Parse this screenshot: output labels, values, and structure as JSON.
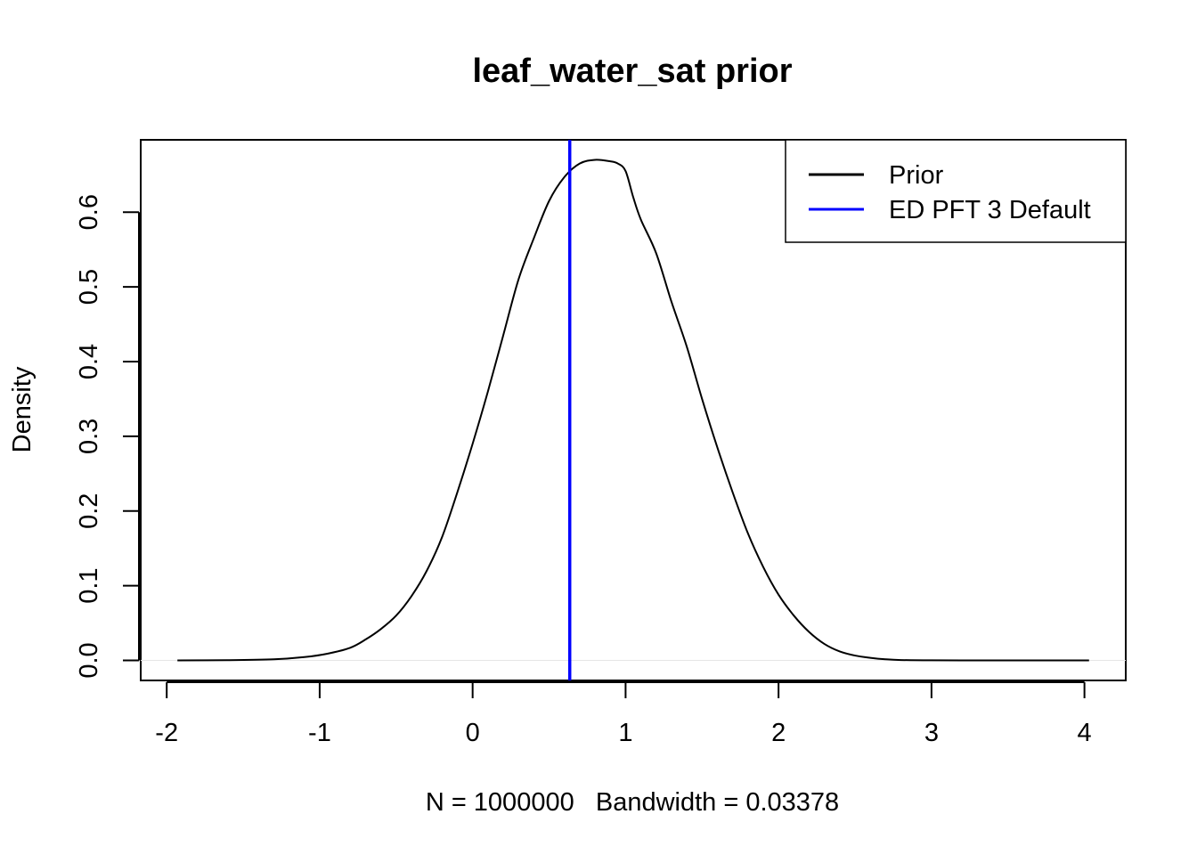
{
  "chart_data": {
    "type": "line",
    "title": "leaf_water_sat prior",
    "xlabel": "N = 1000000   Bandwidth = 0.03378",
    "ylabel": "Density",
    "xlim": [
      -2.17,
      4.27
    ],
    "ylim": [
      -0.0268,
      0.6968
    ],
    "x_ticks": [
      -2,
      -1,
      0,
      1,
      2,
      3,
      4
    ],
    "y_ticks": [
      0.0,
      0.1,
      0.2,
      0.3,
      0.4,
      0.5,
      0.6
    ],
    "x_tick_labels": [
      "-2",
      "-1",
      "0",
      "1",
      "2",
      "3",
      "4"
    ],
    "y_tick_labels": [
      "0.0",
      "0.1",
      "0.2",
      "0.3",
      "0.4",
      "0.5",
      "0.6"
    ],
    "legend_position": "top-right",
    "series": [
      {
        "name": "Prior",
        "color": "#000000",
        "x": [
          -1.93,
          -1.6,
          -1.3,
          -1.1,
          -0.95,
          -0.8,
          -0.7,
          -0.6,
          -0.5,
          -0.4,
          -0.3,
          -0.2,
          -0.1,
          0.0,
          0.1,
          0.2,
          0.3,
          0.4,
          0.5,
          0.6,
          0.7,
          0.8,
          0.9,
          0.95,
          1.0,
          1.05,
          1.1,
          1.2,
          1.3,
          1.4,
          1.5,
          1.6,
          1.7,
          1.8,
          1.9,
          2.0,
          2.1,
          2.2,
          2.3,
          2.4,
          2.5,
          2.6,
          2.7,
          2.8,
          3.0,
          3.3,
          3.6,
          4.03
        ],
        "y": [
          0.0,
          0.0003,
          0.0015,
          0.0045,
          0.009,
          0.017,
          0.028,
          0.042,
          0.06,
          0.086,
          0.12,
          0.165,
          0.225,
          0.29,
          0.36,
          0.435,
          0.51,
          0.565,
          0.615,
          0.647,
          0.665,
          0.67,
          0.668,
          0.665,
          0.655,
          0.62,
          0.59,
          0.545,
          0.48,
          0.42,
          0.35,
          0.285,
          0.225,
          0.17,
          0.125,
          0.088,
          0.06,
          0.038,
          0.022,
          0.012,
          0.0065,
          0.0035,
          0.0015,
          0.0005,
          0.0001,
          0.0,
          0.0,
          0.0
        ]
      },
      {
        "name": "ED PFT 3 Default",
        "color": "#0000ff",
        "type": "vline",
        "x": 0.635
      }
    ]
  }
}
